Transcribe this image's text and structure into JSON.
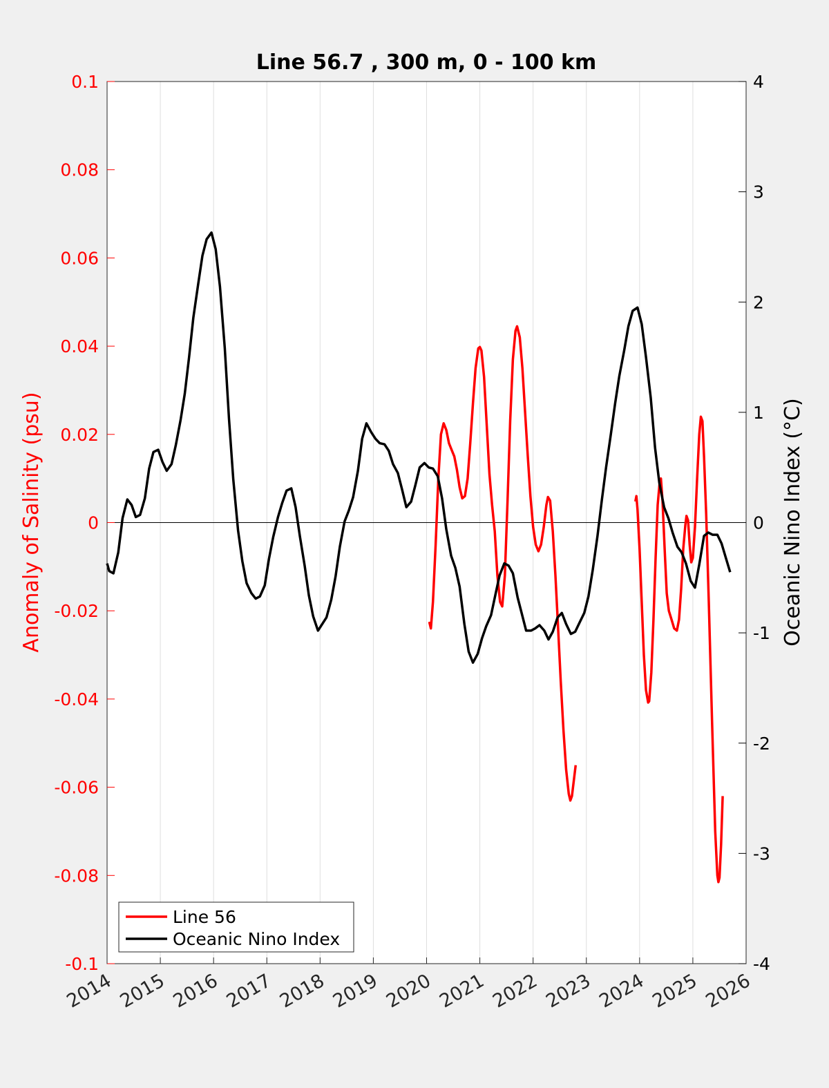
{
  "chart_data": {
    "type": "line",
    "title": "Line 56.7 , 300 m, 0 - 100 km",
    "y_left_label": "Anomaly of Salinity (psu)",
    "y_right_label": "Oceanic Nino Index (°C)",
    "x_range": [
      2014,
      2026
    ],
    "y_left_range": [
      -0.1,
      0.1
    ],
    "y_right_range": [
      -4,
      4
    ],
    "x_ticks": [
      "2014",
      "2015",
      "2016",
      "2017",
      "2018",
      "2019",
      "2020",
      "2021",
      "2022",
      "2023",
      "2024",
      "2025",
      "2026"
    ],
    "y_left_ticks": [
      "0.1",
      "0.08",
      "0.06",
      "0.04",
      "0.02",
      "0",
      "-0.02",
      "-0.04",
      "-0.06",
      "-0.08",
      "-0.1"
    ],
    "y_right_ticks": [
      "4",
      "3",
      "2",
      "1",
      "0",
      "-1",
      "-2",
      "-3",
      "-4"
    ],
    "grid": "vertical",
    "legend_position": "bottom-left",
    "colors": {
      "line56": "#ff0000",
      "oni": "#000000",
      "left_axis": "#ff0000",
      "right_axis": "#000000"
    },
    "series": [
      {
        "name": "Line 56",
        "axis": "left",
        "color": "#ff0000",
        "segments": [
          [
            [
              2020.05,
              -0.0225
            ],
            [
              2020.08,
              -0.024
            ],
            [
              2020.12,
              -0.018
            ],
            [
              2020.17,
              -0.005
            ],
            [
              2020.22,
              0.01
            ],
            [
              2020.27,
              0.02
            ],
            [
              2020.32,
              0.0225
            ],
            [
              2020.37,
              0.021
            ],
            [
              2020.42,
              0.018
            ],
            [
              2020.47,
              0.0165
            ],
            [
              2020.52,
              0.015
            ],
            [
              2020.57,
              0.012
            ],
            [
              2020.62,
              0.008
            ],
            [
              2020.67,
              0.0055
            ],
            [
              2020.72,
              0.006
            ],
            [
              2020.77,
              0.01
            ],
            [
              2020.82,
              0.018
            ],
            [
              2020.87,
              0.027
            ],
            [
              2020.92,
              0.035
            ],
            [
              2020.97,
              0.0395
            ],
            [
              2021.0,
              0.0398
            ],
            [
              2021.03,
              0.039
            ],
            [
              2021.08,
              0.033
            ],
            [
              2021.13,
              0.022
            ],
            [
              2021.18,
              0.011
            ],
            [
              2021.23,
              0.004
            ],
            [
              2021.28,
              -0.002
            ],
            [
              2021.33,
              -0.012
            ],
            [
              2021.38,
              -0.018
            ],
            [
              2021.42,
              -0.019
            ],
            [
              2021.47,
              -0.012
            ],
            [
              2021.52,
              0.005
            ],
            [
              2021.57,
              0.023
            ],
            [
              2021.62,
              0.037
            ],
            [
              2021.67,
              0.0435
            ],
            [
              2021.7,
              0.0445
            ],
            [
              2021.75,
              0.042
            ],
            [
              2021.8,
              0.035
            ],
            [
              2021.85,
              0.025
            ],
            [
              2021.9,
              0.015
            ],
            [
              2021.95,
              0.006
            ],
            [
              2022.0,
              -0.001
            ],
            [
              2022.05,
              -0.005
            ],
            [
              2022.1,
              -0.0065
            ],
            [
              2022.15,
              -0.005
            ],
            [
              2022.2,
              -0.001
            ],
            [
              2022.25,
              0.004
            ],
            [
              2022.28,
              0.0058
            ],
            [
              2022.32,
              0.005
            ],
            [
              2022.37,
              -0.002
            ],
            [
              2022.42,
              -0.012
            ],
            [
              2022.47,
              -0.024
            ],
            [
              2022.52,
              -0.036
            ],
            [
              2022.57,
              -0.047
            ],
            [
              2022.62,
              -0.056
            ],
            [
              2022.67,
              -0.0615
            ],
            [
              2022.7,
              -0.063
            ],
            [
              2022.73,
              -0.062
            ],
            [
              2022.77,
              -0.058
            ],
            [
              2022.8,
              -0.055
            ]
          ],
          [
            [
              2023.92,
              0.0048
            ],
            [
              2023.94,
              0.006
            ],
            [
              2023.96,
              0.003
            ],
            [
              2024.0,
              -0.006
            ],
            [
              2024.04,
              -0.018
            ],
            [
              2024.08,
              -0.03
            ],
            [
              2024.12,
              -0.038
            ],
            [
              2024.16,
              -0.0408
            ],
            [
              2024.18,
              -0.0405
            ],
            [
              2024.22,
              -0.034
            ],
            [
              2024.26,
              -0.022
            ],
            [
              2024.3,
              -0.008
            ],
            [
              2024.34,
              0.004
            ],
            [
              2024.38,
              0.0095
            ],
            [
              2024.4,
              0.01
            ],
            [
              2024.43,
              0.005
            ],
            [
              2024.47,
              -0.006
            ],
            [
              2024.51,
              -0.016
            ],
            [
              2024.55,
              -0.02
            ],
            [
              2024.6,
              -0.022
            ],
            [
              2024.65,
              -0.024
            ],
            [
              2024.7,
              -0.0245
            ],
            [
              2024.74,
              -0.022
            ],
            [
              2024.78,
              -0.015
            ],
            [
              2024.82,
              -0.006
            ],
            [
              2024.86,
              -0.0005
            ],
            [
              2024.88,
              0.0015
            ],
            [
              2024.91,
              0.0005
            ],
            [
              2024.94,
              -0.005
            ],
            [
              2024.97,
              -0.009
            ],
            [
              2025.0,
              -0.008
            ],
            [
              2025.04,
              -0.001
            ],
            [
              2025.08,
              0.01
            ],
            [
              2025.12,
              0.02
            ],
            [
              2025.15,
              0.024
            ],
            [
              2025.18,
              0.023
            ],
            [
              2025.21,
              0.015
            ],
            [
              2025.25,
              0.002
            ],
            [
              2025.3,
              -0.018
            ],
            [
              2025.36,
              -0.045
            ],
            [
              2025.42,
              -0.07
            ],
            [
              2025.46,
              -0.08
            ],
            [
              2025.48,
              -0.0815
            ],
            [
              2025.5,
              -0.0805
            ],
            [
              2025.53,
              -0.073
            ],
            [
              2025.56,
              -0.062
            ]
          ]
        ]
      },
      {
        "name": "Oceanic Nino Index",
        "axis": "right",
        "color": "#000000",
        "segments": [
          [
            [
              2014.0,
              -0.37
            ],
            [
              2014.04,
              -0.44
            ],
            [
              2014.12,
              -0.46
            ],
            [
              2014.21,
              -0.27
            ],
            [
              2014.29,
              0.04
            ],
            [
              2014.38,
              0.21
            ],
            [
              2014.46,
              0.16
            ],
            [
              2014.54,
              0.05
            ],
            [
              2014.62,
              0.07
            ],
            [
              2014.71,
              0.22
            ],
            [
              2014.79,
              0.49
            ],
            [
              2014.87,
              0.64
            ],
            [
              2014.96,
              0.66
            ],
            [
              2015.04,
              0.55
            ],
            [
              2015.12,
              0.47
            ],
            [
              2015.21,
              0.53
            ],
            [
              2015.29,
              0.7
            ],
            [
              2015.38,
              0.93
            ],
            [
              2015.46,
              1.17
            ],
            [
              2015.54,
              1.5
            ],
            [
              2015.62,
              1.86
            ],
            [
              2015.71,
              2.16
            ],
            [
              2015.79,
              2.42
            ],
            [
              2015.87,
              2.57
            ],
            [
              2015.96,
              2.63
            ],
            [
              2016.04,
              2.48
            ],
            [
              2016.12,
              2.14
            ],
            [
              2016.21,
              1.58
            ],
            [
              2016.29,
              0.94
            ],
            [
              2016.37,
              0.39
            ],
            [
              2016.46,
              -0.07
            ],
            [
              2016.54,
              -0.35
            ],
            [
              2016.62,
              -0.55
            ],
            [
              2016.71,
              -0.64
            ],
            [
              2016.79,
              -0.69
            ],
            [
              2016.87,
              -0.67
            ],
            [
              2016.96,
              -0.57
            ],
            [
              2017.04,
              -0.33
            ],
            [
              2017.12,
              -0.13
            ],
            [
              2017.21,
              0.05
            ],
            [
              2017.29,
              0.18
            ],
            [
              2017.37,
              0.29
            ],
            [
              2017.46,
              0.31
            ],
            [
              2017.54,
              0.14
            ],
            [
              2017.62,
              -0.12
            ],
            [
              2017.71,
              -0.39
            ],
            [
              2017.79,
              -0.66
            ],
            [
              2017.87,
              -0.85
            ],
            [
              2017.96,
              -0.98
            ],
            [
              2018.04,
              -0.92
            ],
            [
              2018.12,
              -0.86
            ],
            [
              2018.21,
              -0.7
            ],
            [
              2018.29,
              -0.49
            ],
            [
              2018.37,
              -0.22
            ],
            [
              2018.46,
              0.01
            ],
            [
              2018.54,
              0.11
            ],
            [
              2018.62,
              0.23
            ],
            [
              2018.71,
              0.47
            ],
            [
              2018.79,
              0.76
            ],
            [
              2018.87,
              0.9
            ],
            [
              2018.96,
              0.82
            ],
            [
              2019.04,
              0.76
            ],
            [
              2019.12,
              0.72
            ],
            [
              2019.21,
              0.71
            ],
            [
              2019.29,
              0.65
            ],
            [
              2019.37,
              0.53
            ],
            [
              2019.46,
              0.45
            ],
            [
              2019.54,
              0.3
            ],
            [
              2019.62,
              0.14
            ],
            [
              2019.71,
              0.19
            ],
            [
              2019.79,
              0.34
            ],
            [
              2019.87,
              0.5
            ],
            [
              2019.96,
              0.54
            ],
            [
              2020.04,
              0.5
            ],
            [
              2020.12,
              0.49
            ],
            [
              2020.21,
              0.42
            ],
            [
              2020.29,
              0.22
            ],
            [
              2020.37,
              -0.06
            ],
            [
              2020.46,
              -0.3
            ],
            [
              2020.54,
              -0.41
            ],
            [
              2020.62,
              -0.58
            ],
            [
              2020.71,
              -0.92
            ],
            [
              2020.79,
              -1.17
            ],
            [
              2020.87,
              -1.27
            ],
            [
              2020.96,
              -1.19
            ],
            [
              2021.04,
              -1.05
            ],
            [
              2021.12,
              -0.94
            ],
            [
              2021.21,
              -0.84
            ],
            [
              2021.29,
              -0.66
            ],
            [
              2021.37,
              -0.48
            ],
            [
              2021.46,
              -0.37
            ],
            [
              2021.54,
              -0.39
            ],
            [
              2021.62,
              -0.46
            ],
            [
              2021.71,
              -0.68
            ],
            [
              2021.79,
              -0.83
            ],
            [
              2021.87,
              -0.98
            ],
            [
              2021.96,
              -0.98
            ],
            [
              2022.04,
              -0.96
            ],
            [
              2022.12,
              -0.93
            ],
            [
              2022.21,
              -0.98
            ],
            [
              2022.29,
              -1.06
            ],
            [
              2022.37,
              -0.99
            ],
            [
              2022.46,
              -0.86
            ],
            [
              2022.54,
              -0.82
            ],
            [
              2022.62,
              -0.92
            ],
            [
              2022.71,
              -1.01
            ],
            [
              2022.79,
              -0.99
            ],
            [
              2022.87,
              -0.91
            ],
            [
              2022.96,
              -0.82
            ],
            [
              2023.04,
              -0.67
            ],
            [
              2023.12,
              -0.43
            ],
            [
              2023.21,
              -0.12
            ],
            [
              2023.29,
              0.2
            ],
            [
              2023.37,
              0.5
            ],
            [
              2023.46,
              0.8
            ],
            [
              2023.54,
              1.08
            ],
            [
              2023.62,
              1.33
            ],
            [
              2023.71,
              1.56
            ],
            [
              2023.79,
              1.78
            ],
            [
              2023.87,
              1.92
            ],
            [
              2023.96,
              1.95
            ],
            [
              2024.04,
              1.8
            ],
            [
              2024.12,
              1.5
            ],
            [
              2024.21,
              1.13
            ],
            [
              2024.29,
              0.68
            ],
            [
              2024.37,
              0.36
            ],
            [
              2024.46,
              0.14
            ],
            [
              2024.54,
              0.04
            ],
            [
              2024.62,
              -0.09
            ],
            [
              2024.71,
              -0.22
            ],
            [
              2024.79,
              -0.27
            ],
            [
              2024.87,
              -0.37
            ],
            [
              2024.96,
              -0.53
            ],
            [
              2025.04,
              -0.59
            ],
            [
              2025.12,
              -0.38
            ],
            [
              2025.21,
              -0.12
            ],
            [
              2025.29,
              -0.09
            ],
            [
              2025.37,
              -0.11
            ],
            [
              2025.46,
              -0.11
            ],
            [
              2025.54,
              -0.19
            ],
            [
              2025.62,
              -0.32
            ],
            [
              2025.7,
              -0.45
            ]
          ]
        ]
      }
    ]
  }
}
